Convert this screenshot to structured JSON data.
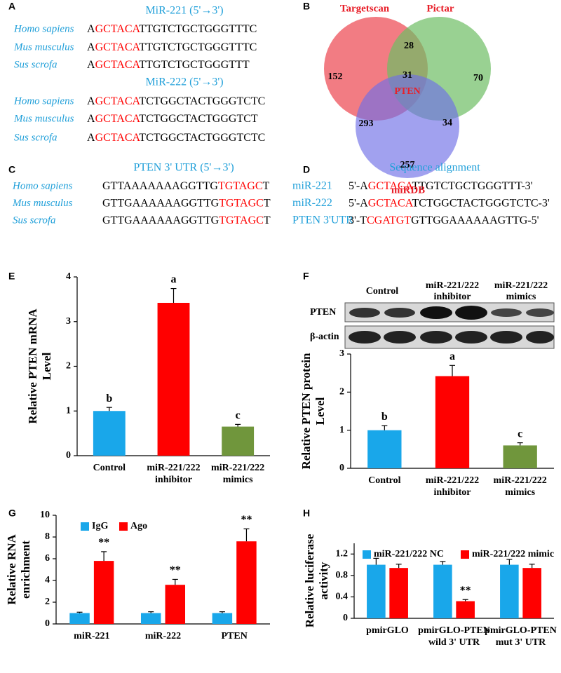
{
  "panel_labels": [
    "A",
    "B",
    "C",
    "D",
    "E",
    "F",
    "G",
    "H"
  ],
  "panel_a": {
    "groups": [
      {
        "title": "MiR-221 (5'→3')",
        "rows": [
          {
            "species": "Homo sapiens",
            "seq": [
              "A",
              "GCTACA",
              "TTGTCTGCTGGGTTTC"
            ]
          },
          {
            "species": "Mus musculus",
            "seq": [
              "A",
              "GCTACA",
              "TTGTCTGCTGGGTTTC"
            ]
          },
          {
            "species": "Sus scrofa",
            "seq": [
              "A",
              "GCTACA",
              "TTGTCTGCTGGGTTT"
            ]
          }
        ]
      },
      {
        "title": "MiR-222 (5'→3')",
        "rows": [
          {
            "species": "Homo sapiens",
            "seq": [
              "A",
              "GCTACA",
              "TCTGGCTACTGGGTCTC"
            ]
          },
          {
            "species": "Mus musculus",
            "seq": [
              "A",
              "GCTACA",
              "TCTGGCTACTGGGTCT"
            ]
          },
          {
            "species": "Sus scrofa",
            "seq": [
              "A",
              "GCTACA",
              "TCTGGCTACTGGGTCTC"
            ]
          }
        ]
      }
    ]
  },
  "panel_b": {
    "sets": [
      "Targetscan",
      "Pictar",
      "miRDB"
    ],
    "target": "PTEN",
    "regions": {
      "targetscan_only": 152,
      "targetscan_pictar": 28,
      "pictar_only": 70,
      "all": 31,
      "targetscan_mirdb": 293,
      "pictar_mirdb": 34,
      "mirdb_only": 257
    }
  },
  "panel_c": {
    "title": "PTEN 3' UTR (5'→3')",
    "rows": [
      {
        "species": "Homo sapiens",
        "seq": [
          "GTTAAAAAAAGGTTG",
          "TGTAGC",
          "T"
        ]
      },
      {
        "species": "Mus musculus",
        "seq": [
          "GTTGAAAAAAGGTTG",
          "TGTAGC",
          "T"
        ]
      },
      {
        "species": "Sus scrofa",
        "seq": [
          "GTTGAAAAAAGGTTG",
          "TGTAGC",
          "T"
        ]
      }
    ]
  },
  "panel_d": {
    "title": "Sequence alignment",
    "rows": [
      {
        "species": "miR-221",
        "seq": [
          "5'-A",
          "GCTACA",
          "TTGTCTGCTGGGTTT-3'"
        ]
      },
      {
        "species": "miR-222",
        "seq": [
          "5'-A",
          "GCTACA",
          "TCTGGCTACTGGGTCTC-3'"
        ]
      },
      {
        "species": "PTEN 3'UTR",
        "seq": [
          "3'-T",
          "CGATGT",
          "GTTGGAAAAAAGTTG-5'"
        ]
      }
    ]
  },
  "chart_data": [
    {
      "type": "bar",
      "ylabel": "Relative PTEN mRNA Level",
      "categories": [
        "Control",
        "miR-221/222 inhibitor",
        "miR-221/222 mimics"
      ],
      "series": [
        {
          "values": [
            1.0,
            3.42,
            0.65
          ],
          "errors": [
            0.08,
            0.32,
            0.05
          ],
          "annotations": [
            "b",
            "a",
            "c"
          ],
          "colors": [
            "#19a7ea",
            "#ff0000",
            "#70963c"
          ]
        }
      ],
      "ylim": [
        0,
        4
      ],
      "yticks": [
        0,
        1,
        2,
        3,
        4
      ]
    },
    {
      "type": "bar",
      "ylabel": "Relative PTEN protein Level",
      "blot": {
        "rows": [
          "PTEN",
          "β-actin"
        ],
        "groups": [
          "Control",
          "miR-221/222 inhibitor",
          "miR-221/222 mimics"
        ]
      },
      "categories": [
        "Control",
        "miR-221/222 inhibitor",
        "miR-221/222 mimics"
      ],
      "series": [
        {
          "values": [
            1.0,
            2.42,
            0.6
          ],
          "errors": [
            0.12,
            0.28,
            0.07
          ],
          "annotations": [
            "b",
            "a",
            "c"
          ],
          "colors": [
            "#19a7ea",
            "#ff0000",
            "#70963c"
          ]
        }
      ],
      "ylim": [
        0,
        3
      ],
      "yticks": [
        0,
        1,
        2,
        3
      ]
    },
    {
      "type": "bar",
      "ylabel": "Relative RNA enrichment",
      "categories": [
        "miR-221",
        "miR-222",
        "PTEN"
      ],
      "series": [
        {
          "name": "IgG",
          "color": "#19a7ea",
          "values": [
            1,
            1,
            1
          ],
          "errors": [
            0.08,
            0.12,
            0.12
          ]
        },
        {
          "name": "Ago",
          "color": "#ff0000",
          "values": [
            5.8,
            3.6,
            7.6
          ],
          "errors": [
            0.85,
            0.5,
            1.15
          ],
          "annotations": [
            "**",
            "**",
            "**"
          ]
        }
      ],
      "ylim": [
        0,
        10
      ],
      "yticks": [
        0,
        2,
        4,
        6,
        8,
        10
      ],
      "legend": "top-left"
    },
    {
      "type": "bar",
      "ylabel": "Relative luciferase activity",
      "categories": [
        "pmirGLO",
        "pmirGLO-PTEN wild 3' UTR",
        "pmirGLO-PTEN mut 3' UTR"
      ],
      "series": [
        {
          "name": "miR-221/222 NC",
          "color": "#19a7ea",
          "values": [
            1,
            1,
            1
          ],
          "errors": [
            0.12,
            0.06,
            0.1
          ]
        },
        {
          "name": "miR-221/222 mimic",
          "color": "#ff0000",
          "values": [
            0.94,
            0.32,
            0.94
          ],
          "errors": [
            0.07,
            0.03,
            0.07
          ],
          "annotations": [
            null,
            "**",
            null
          ]
        }
      ],
      "ylim": [
        0,
        1.4
      ],
      "yticks": [
        0,
        0.4,
        0.8,
        1.2
      ],
      "legend": "top-left"
    }
  ]
}
